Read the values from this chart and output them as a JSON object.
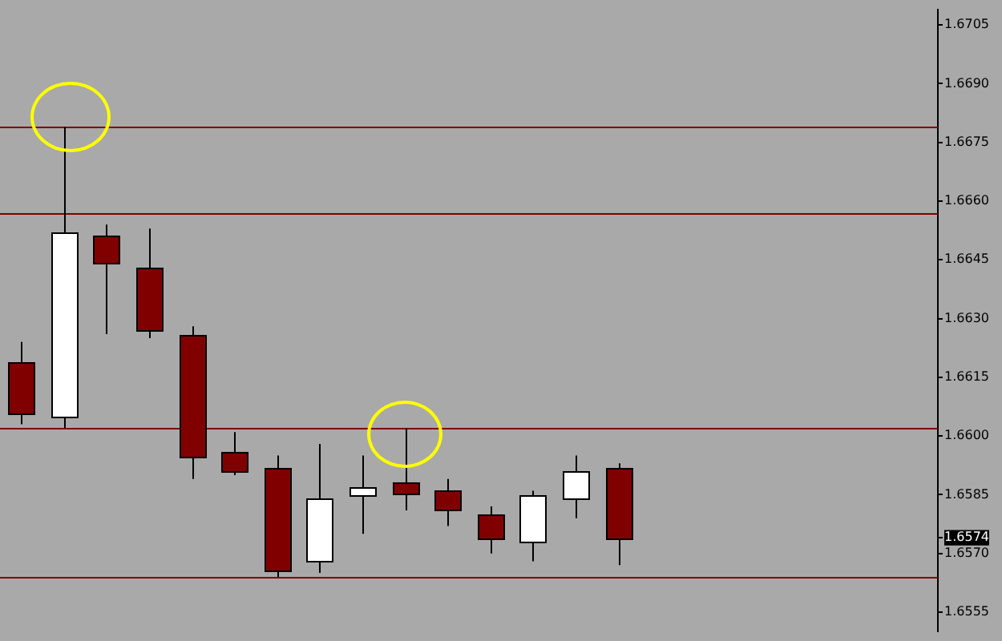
{
  "chart_data": {
    "type": "candlestick",
    "categories": [
      null,
      null,
      null,
      null,
      null,
      null,
      null,
      null,
      null,
      null,
      null,
      null,
      null,
      null,
      null,
      null,
      null,
      null,
      null,
      null,
      null,
      null
    ],
    "ohlc": [
      [
        1.6619,
        1.6624,
        1.6603,
        1.6606
      ],
      [
        1.6605,
        1.6679,
        1.6602,
        1.6652
      ],
      [
        1.6651,
        1.6654,
        1.6626,
        1.6644
      ],
      [
        1.6643,
        1.6653,
        1.6625,
        1.6627
      ],
      [
        1.6626,
        1.6628,
        1.6589,
        1.6595
      ],
      [
        1.6596,
        1.6601,
        1.659,
        1.6591
      ],
      [
        1.6592,
        1.6595,
        1.6564,
        1.6566
      ],
      [
        1.6568,
        1.6598,
        1.6565,
        1.6584
      ],
      [
        1.6585,
        1.6595,
        1.6575,
        1.6587
      ],
      [
        1.6588,
        1.6602,
        1.6581,
        1.6585
      ],
      [
        1.6586,
        1.6589,
        1.6577,
        1.6581
      ],
      [
        1.658,
        1.6582,
        1.657,
        1.6574
      ],
      [
        1.6573,
        1.6586,
        1.6568,
        1.6585
      ],
      [
        1.6584,
        1.6595,
        1.6579,
        1.6591
      ],
      [
        1.6592,
        1.6593,
        1.6567,
        1.6574
      ],
      null,
      null,
      null,
      null,
      null,
      null,
      null
    ],
    "colors": [
      "#800000",
      "#ffffff",
      "#800000",
      "#800000",
      "#800000",
      "#800000",
      "#800000",
      "#ffffff",
      "#ffffff",
      "#800000",
      "#800000",
      "#800000",
      "#ffffff",
      "#ffffff",
      "#800000",
      null,
      null,
      null,
      null,
      null,
      null,
      null
    ],
    "ylim": [
      1.655,
      1.6709
    ],
    "yticks": [
      1.6555,
      {
        "value": 1.657,
        "label": "1.6570"
      },
      {
        "value": 1.6574,
        "label": "1.6574"
      },
      1.6585,
      {
        "value": 1.66,
        "label": "1.6600"
      },
      1.6615,
      {
        "value": 1.663,
        "label": "1.6630"
      },
      1.6645,
      {
        "value": 1.666,
        "label": "1.6660"
      },
      1.6675,
      {
        "value": 1.669,
        "label": "1.6690"
      },
      1.6705
    ],
    "tick_labels": "y",
    "grid": false,
    "legend": false,
    "ref_lines": [
      {
        "axis": "y",
        "value": 1.6679,
        "color": "#800000"
      },
      {
        "axis": "y",
        "value": 1.6657,
        "color": "#800000"
      },
      {
        "axis": "y",
        "value": 1.6602,
        "color": "#800000"
      },
      {
        "axis": "y",
        "value": 1.6564,
        "color": "#800000"
      }
    ]
  }
}
